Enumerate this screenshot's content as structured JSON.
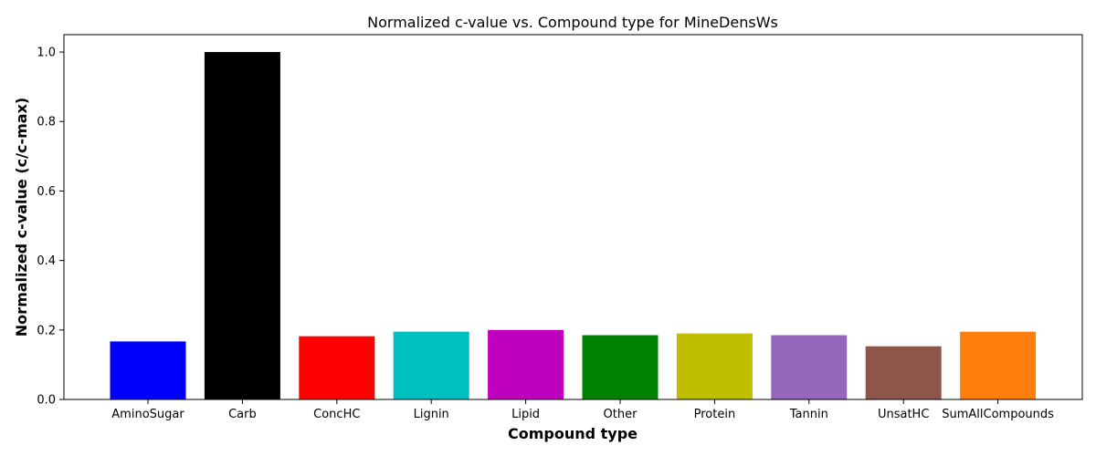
{
  "chart_data": {
    "type": "bar",
    "title": "Normalized c-value vs. Compound type for MineDensWs",
    "xlabel": "Compound type",
    "ylabel": "Normalized c-value (c/c-max)",
    "categories": [
      "AminoSugar",
      "Carb",
      "ConcHC",
      "Lignin",
      "Lipid",
      "Other",
      "Protein",
      "Tannin",
      "UnsatHC",
      "SumAllCompounds"
    ],
    "values": [
      0.167,
      1.0,
      0.182,
      0.195,
      0.2,
      0.185,
      0.19,
      0.185,
      0.153,
      0.195
    ],
    "colors": [
      "#0000ff",
      "#000000",
      "#ff0000",
      "#00bfbf",
      "#bf00bf",
      "#008000",
      "#bfbf00",
      "#9467bd",
      "#8c564b",
      "#ff7f0e"
    ],
    "ylim": [
      0,
      1.05
    ],
    "yticks": [
      0.0,
      0.2,
      0.4,
      0.6,
      0.8,
      1.0
    ],
    "ytick_labels": [
      "0.0",
      "0.2",
      "0.4",
      "0.6",
      "0.8",
      "1.0"
    ],
    "grid": false,
    "legend": "none"
  }
}
